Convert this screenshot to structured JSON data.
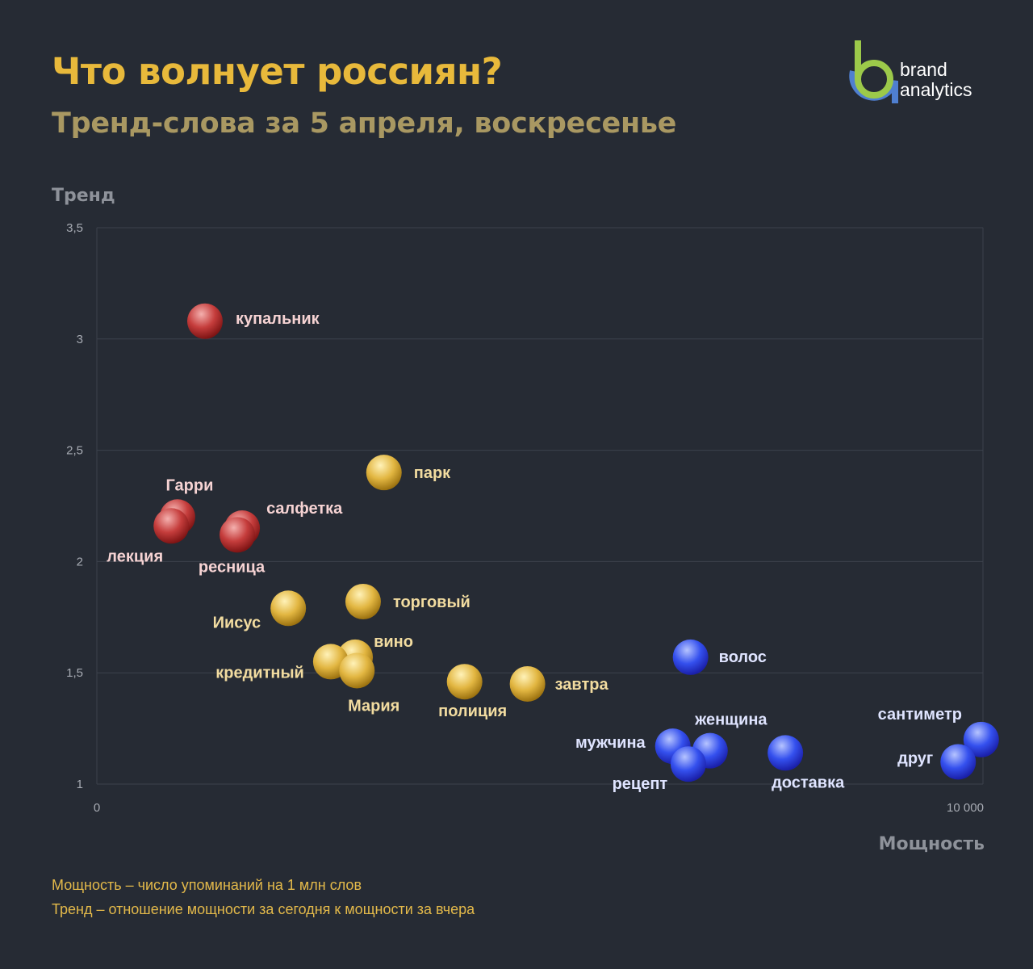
{
  "header": {
    "title": "Что волнует россиян?",
    "subtitle": "Тренд-слова за 5 апреля, воскресенье"
  },
  "logo": {
    "line1": "brand",
    "line2": "analytics"
  },
  "footnotes": [
    "Мощность – число упоминаний на 1 млн слов",
    "Тренд – отношение мощности за сегодня к мощности за вчера"
  ],
  "chart_data": {
    "type": "scatter",
    "title": "Что волнует россиян?",
    "xlabel": "Мощность",
    "ylabel": "Тренд",
    "xlim": [
      0,
      10000
    ],
    "ylim": [
      1,
      3.5
    ],
    "x_ticks": [
      {
        "value": 0,
        "label": "0"
      },
      {
        "value": 10000,
        "label": "10 000"
      }
    ],
    "y_ticks": [
      {
        "value": 1,
        "label": "1"
      },
      {
        "value": 1.5,
        "label": "1,5"
      },
      {
        "value": 2,
        "label": "2"
      },
      {
        "value": 2.5,
        "label": "2,5"
      },
      {
        "value": 3,
        "label": "3"
      },
      {
        "value": 3.5,
        "label": "3,5"
      }
    ],
    "grid": true,
    "group_colors": {
      "red": "#c0393a",
      "gold": "#e0b43e",
      "blue": "#2f46e8"
    },
    "label_colors": {
      "red": "#f6d3d3",
      "gold": "#f2dca0",
      "blue": "#dfe4ff"
    },
    "points": [
      {
        "label": "купальник",
        "x": 1220,
        "y": 3.08,
        "group": "red"
      },
      {
        "label": "Гарри",
        "x": 910,
        "y": 2.2,
        "group": "red"
      },
      {
        "label": "лекция",
        "x": 840,
        "y": 2.16,
        "group": "red"
      },
      {
        "label": "салфетка",
        "x": 1640,
        "y": 2.15,
        "group": "red"
      },
      {
        "label": "ресница",
        "x": 1585,
        "y": 2.12,
        "group": "red"
      },
      {
        "label": "парк",
        "x": 3240,
        "y": 2.4,
        "group": "gold"
      },
      {
        "label": "Иисус",
        "x": 2160,
        "y": 1.79,
        "group": "gold"
      },
      {
        "label": "торговый",
        "x": 3005,
        "y": 1.82,
        "group": "gold"
      },
      {
        "label": "вино",
        "x": 2915,
        "y": 1.57,
        "group": "gold"
      },
      {
        "label": "Мария",
        "x": 2935,
        "y": 1.51,
        "group": "gold"
      },
      {
        "label": "кредитный",
        "x": 2640,
        "y": 1.55,
        "group": "gold"
      },
      {
        "label": "полиция",
        "x": 4150,
        "y": 1.46,
        "group": "gold"
      },
      {
        "label": "завтра",
        "x": 4860,
        "y": 1.45,
        "group": "gold"
      },
      {
        "label": "волос",
        "x": 6700,
        "y": 1.57,
        "group": "blue"
      },
      {
        "label": "женщина",
        "x": 6920,
        "y": 1.15,
        "group": "blue"
      },
      {
        "label": "рецепт",
        "x": 6675,
        "y": 1.09,
        "group": "blue"
      },
      {
        "label": "мужчина",
        "x": 6500,
        "y": 1.17,
        "group": "blue"
      },
      {
        "label": "доставка",
        "x": 7770,
        "y": 1.14,
        "group": "blue"
      },
      {
        "label": "сантиметр",
        "x": 9980,
        "y": 1.2,
        "group": "blue"
      },
      {
        "label": "друг",
        "x": 9720,
        "y": 1.1,
        "group": "blue"
      }
    ]
  }
}
